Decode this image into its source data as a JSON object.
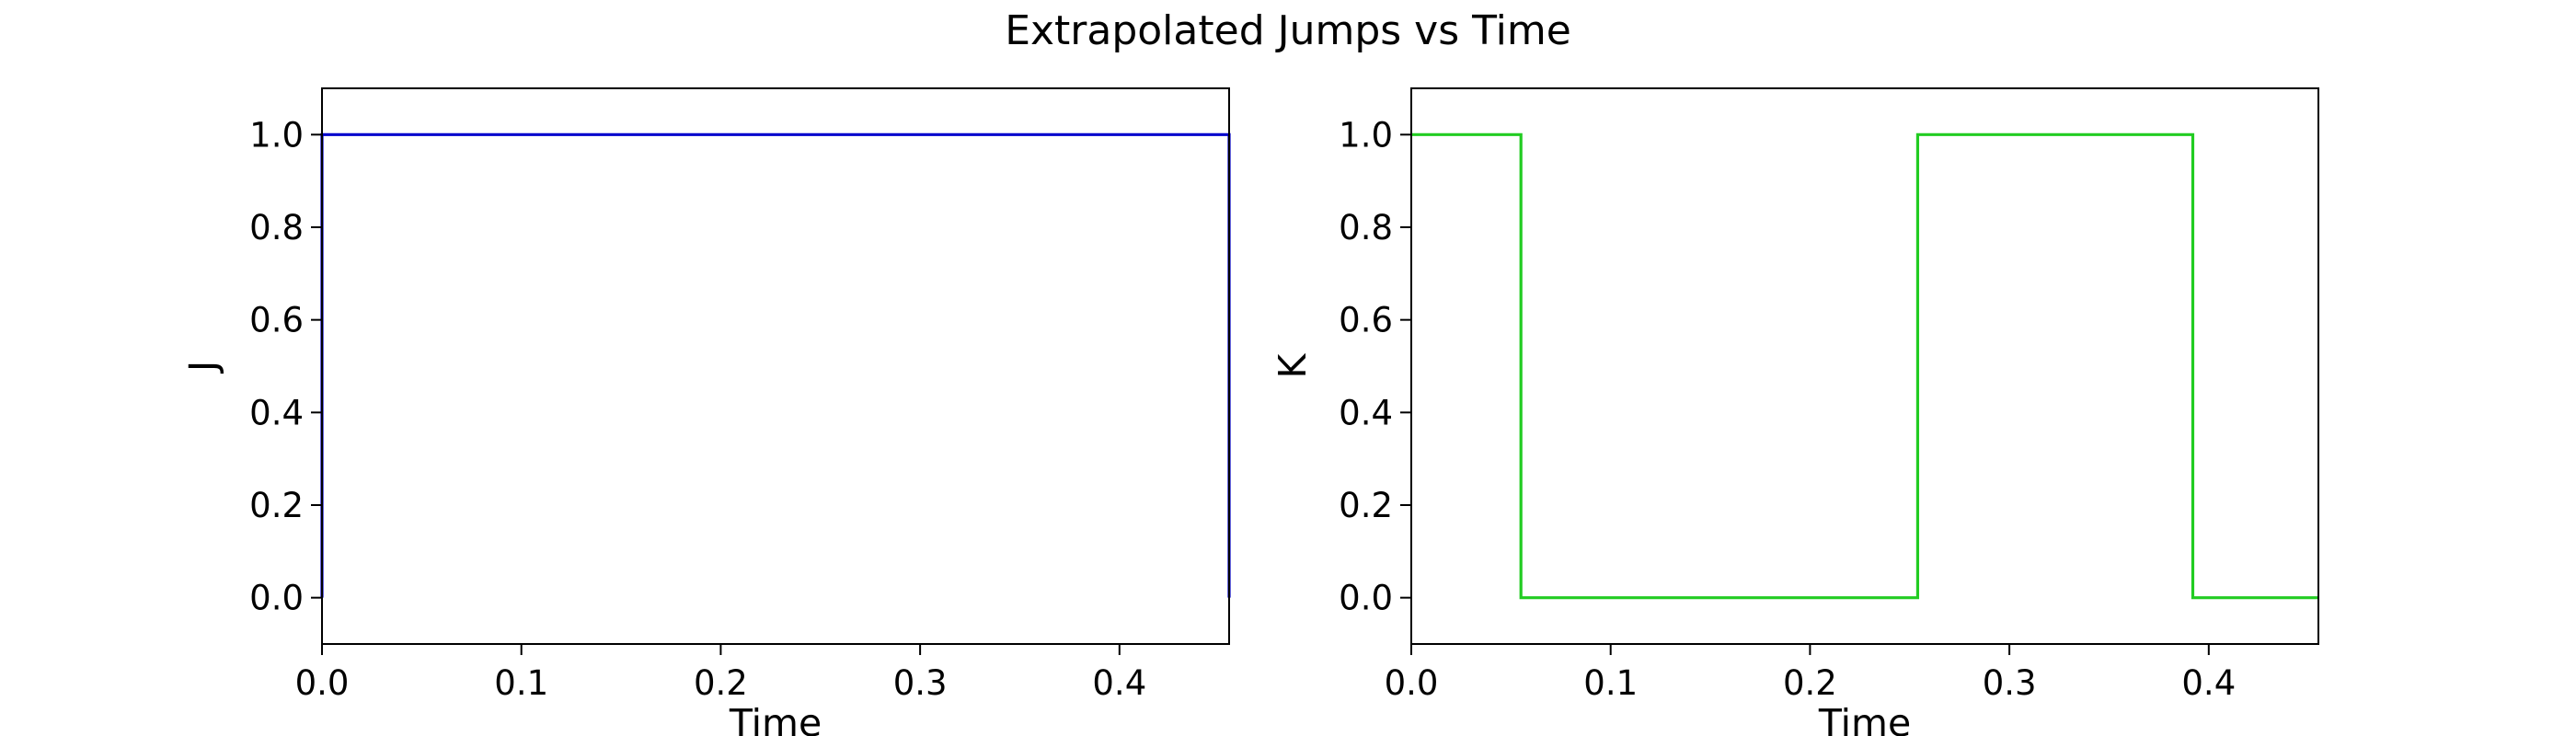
{
  "figure": {
    "title": "Extrapolated Jumps vs Time"
  },
  "chart_data": [
    {
      "type": "line",
      "step": true,
      "title": "",
      "xlabel": "Time",
      "ylabel": "J",
      "xlim": [
        0.0,
        0.455
      ],
      "ylim": [
        -0.1,
        1.1
      ],
      "xticks": [
        "0.0",
        "0.1",
        "0.2",
        "0.3",
        "0.4"
      ],
      "yticks": [
        "0.0",
        "0.2",
        "0.4",
        "0.6",
        "0.8",
        "1.0"
      ],
      "grid": false,
      "legend": "none",
      "series": [
        {
          "color": "#0000cc",
          "x": [
            0.0,
            0.0,
            0.455,
            0.455
          ],
          "y": [
            0.0,
            1.0,
            1.0,
            0.0
          ]
        }
      ]
    },
    {
      "type": "line",
      "step": true,
      "title": "",
      "xlabel": "Time",
      "ylabel": "K",
      "xlim": [
        0.0,
        0.455
      ],
      "ylim": [
        -0.1,
        1.1
      ],
      "xticks": [
        "0.0",
        "0.1",
        "0.2",
        "0.3",
        "0.4"
      ],
      "yticks": [
        "0.0",
        "0.2",
        "0.4",
        "0.6",
        "0.8",
        "1.0"
      ],
      "grid": false,
      "legend": "none",
      "series": [
        {
          "color": "#22cc22",
          "x": [
            0.0,
            0.055,
            0.055,
            0.254,
            0.254,
            0.392,
            0.392,
            0.455
          ],
          "y": [
            1.0,
            1.0,
            0.0,
            0.0,
            1.0,
            1.0,
            0.0,
            0.0
          ]
        }
      ]
    }
  ]
}
